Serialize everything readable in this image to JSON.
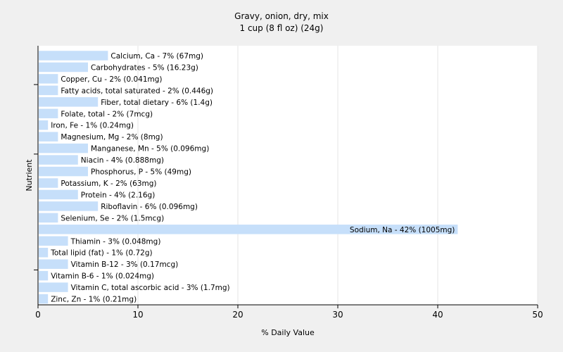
{
  "chart_data": {
    "type": "bar",
    "orientation": "horizontal",
    "title": "Gravy, onion, dry, mix",
    "subtitle": "1 cup (8 fl oz) (24g)",
    "xlabel": "% Daily Value",
    "ylabel": "Nutrient",
    "xlim": [
      0,
      50
    ],
    "xticks": [
      0,
      10,
      20,
      30,
      40,
      50
    ],
    "grid": true,
    "bar_color": "#c6dffa",
    "categories": [
      "Calcium, Ca - 7% (67mg)",
      "Carbohydrates - 5% (16.23g)",
      "Copper, Cu - 2% (0.041mg)",
      "Fatty acids, total saturated - 2% (0.446g)",
      "Fiber, total dietary - 6% (1.4g)",
      "Folate, total - 2% (7mcg)",
      "Iron, Fe - 1% (0.24mg)",
      "Magnesium, Mg - 2% (8mg)",
      "Manganese, Mn - 5% (0.096mg)",
      "Niacin - 4% (0.888mg)",
      "Phosphorus, P - 5% (49mg)",
      "Potassium, K - 2% (63mg)",
      "Protein - 4% (2.16g)",
      "Riboflavin - 6% (0.096mg)",
      "Selenium, Se - 2% (1.5mcg)",
      "Sodium, Na - 42% (1005mg)",
      "Thiamin - 3% (0.048mg)",
      "Total lipid (fat) - 1% (0.72g)",
      "Vitamin B-12 - 3% (0.17mcg)",
      "Vitamin B-6 - 1% (0.024mg)",
      "Vitamin C, total ascorbic acid - 3% (1.7mg)",
      "Zinc, Zn - 1% (0.21mg)"
    ],
    "values": [
      7,
      5,
      2,
      2,
      6,
      2,
      1,
      2,
      5,
      4,
      5,
      2,
      4,
      6,
      2,
      42,
      3,
      1,
      3,
      1,
      3,
      1
    ]
  }
}
